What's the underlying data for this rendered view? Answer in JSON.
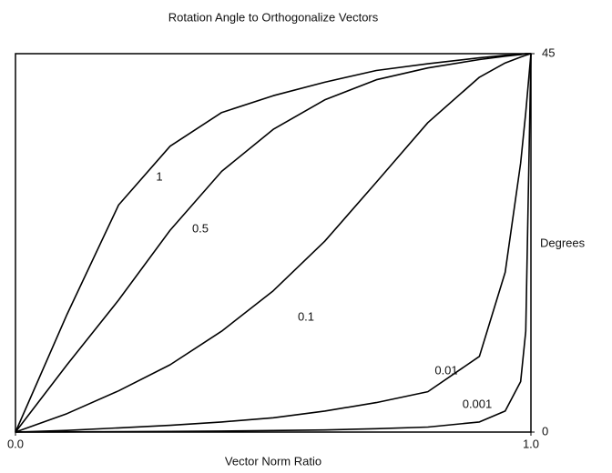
{
  "chart_data": {
    "type": "line",
    "title": "Rotation Angle to Orthogonalize Vectors",
    "x_label": "Vector Norm Ratio",
    "y_label": "Degrees",
    "x": [
      0,
      0.1,
      0.2,
      0.3,
      0.4,
      0.5,
      0.6,
      0.7,
      0.8,
      0.9,
      0.95,
      0.98,
      0.99,
      1
    ],
    "series": [
      {
        "name": "1",
        "color": "#000000",
        "values": [
          0,
          14,
          27,
          34,
          38,
          40,
          41.6,
          43,
          43.8,
          44.5,
          44.8,
          44.9,
          45,
          45
        ]
      },
      {
        "name": "0.5",
        "color": "#000000",
        "values": [
          0,
          8,
          15.7,
          24,
          31,
          36,
          39.5,
          41.9,
          43.3,
          44.3,
          44.7,
          44.9,
          45,
          45
        ]
      },
      {
        "name": "0.1",
        "color": "#000000",
        "values": [
          0,
          2.2,
          4.9,
          8,
          12,
          16.8,
          22.7,
          29.7,
          36.8,
          42.2,
          43.9,
          44.6,
          44.8,
          45
        ]
      },
      {
        "name": "0.01",
        "color": "#000000",
        "values": [
          0,
          0.2,
          0.5,
          0.8,
          1.2,
          1.7,
          2.5,
          3.5,
          4.8,
          9,
          19,
          32,
          38,
          45
        ]
      },
      {
        "name": "0.001",
        "color": "#000000",
        "values": [
          0,
          0.02,
          0.05,
          0.08,
          0.12,
          0.18,
          0.25,
          0.4,
          0.6,
          1.2,
          2.5,
          6,
          12,
          45
        ]
      }
    ],
    "xlim": [
      0,
      1
    ],
    "xticks": [
      {
        "value": 0,
        "label": "0.0"
      },
      {
        "value": 1,
        "label": "1.0"
      }
    ],
    "ylim": [
      0,
      45
    ],
    "yticks": [
      0,
      45
    ],
    "y_axis_side": "right",
    "grid": false
  }
}
